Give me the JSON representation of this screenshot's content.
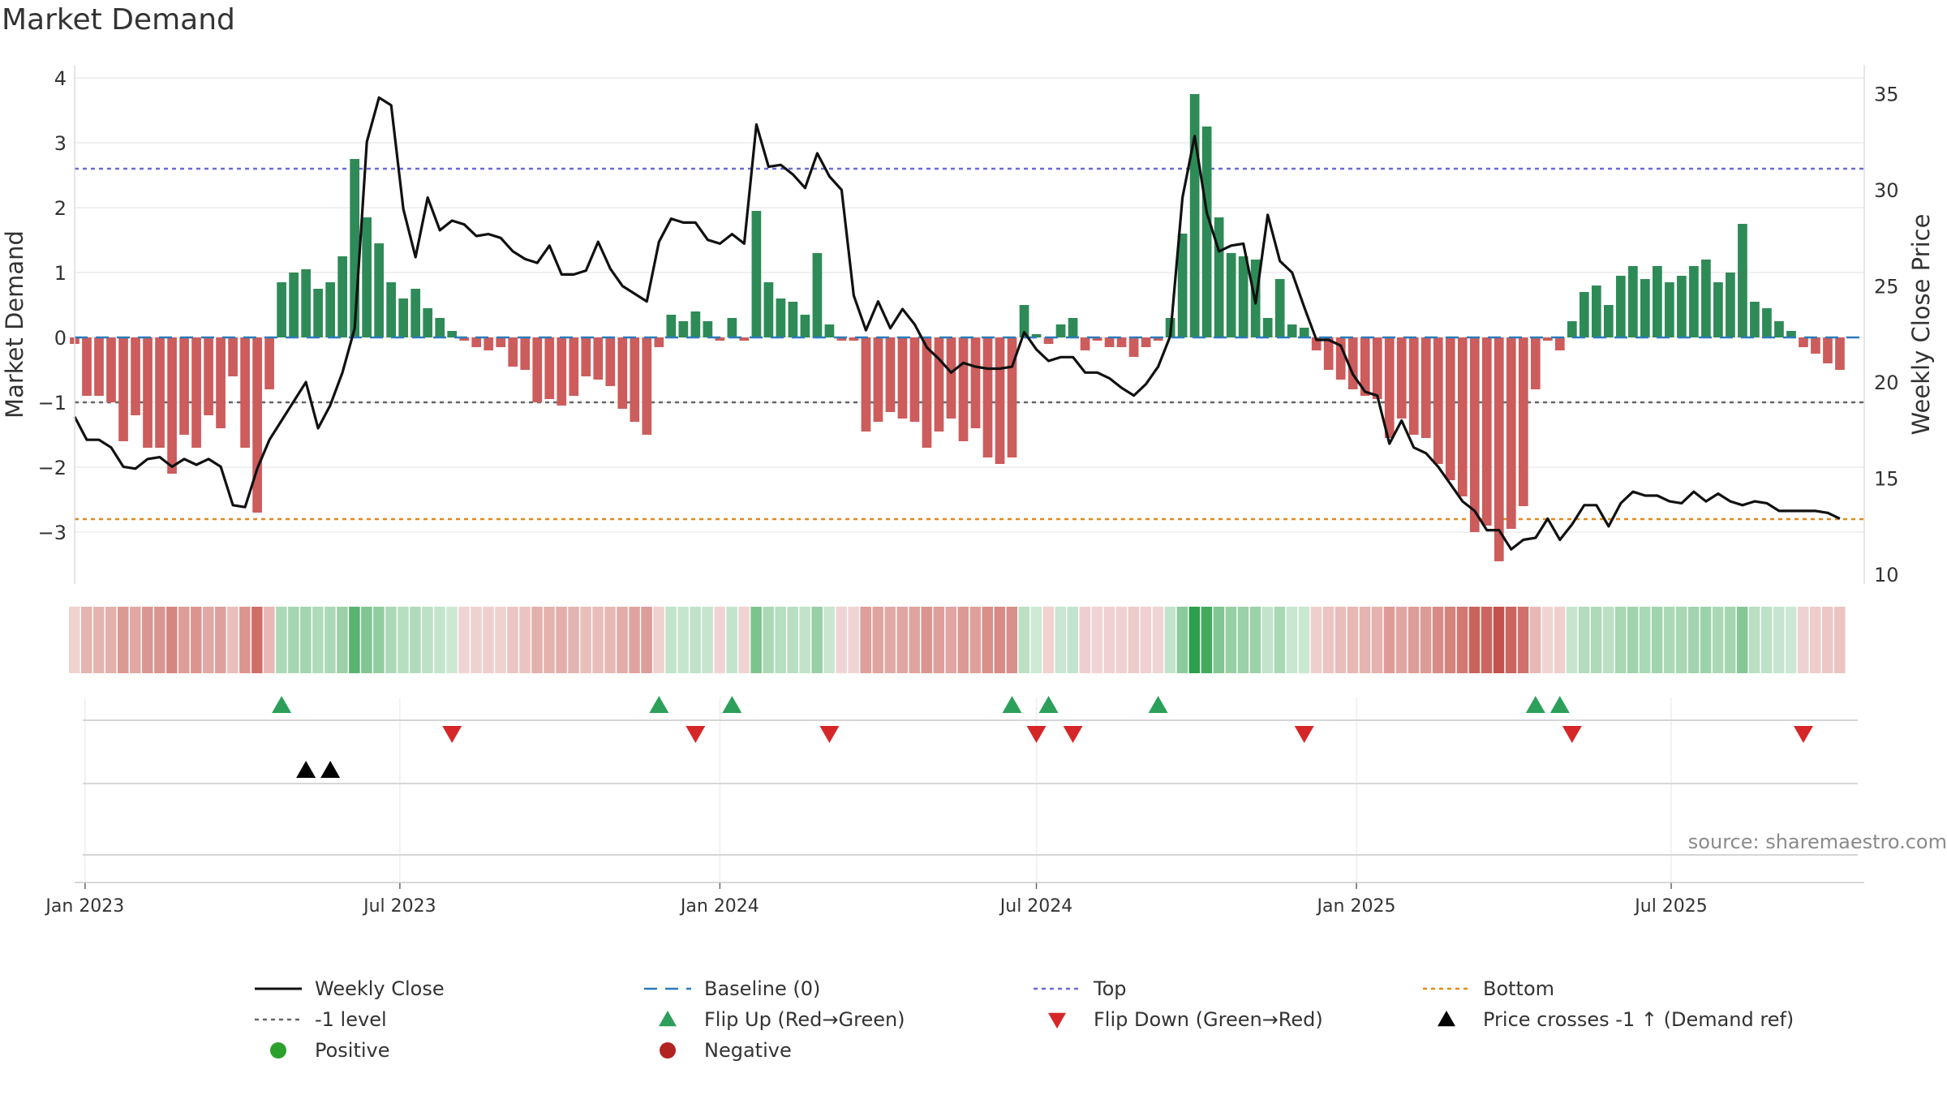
{
  "title": "Market Demand",
  "source": "source: sharemaestro.com",
  "colors": {
    "positive_bar": "#2e8b57",
    "negative_bar": "#cd5c5c",
    "close_line": "#111111",
    "baseline": "#2b7bb9",
    "top_line": "#6a6ad8",
    "minus1_line": "#666666",
    "bottom_line": "#e08a1e",
    "flip_up": "#2ca05a",
    "flip_down": "#d62728",
    "price_cross": "#000000",
    "positive_dot": "#2ca02c",
    "negative_dot": "#b22222"
  },
  "legend": [
    {
      "key": "close",
      "label": "Weekly Close"
    },
    {
      "key": "baseline",
      "label": "Baseline (0)"
    },
    {
      "key": "top",
      "label": "Top"
    },
    {
      "key": "bottom",
      "label": "Bottom"
    },
    {
      "key": "minus1",
      "label": "-1 level"
    },
    {
      "key": "flipup",
      "label": "Flip Up (Red→Green)"
    },
    {
      "key": "flipdown",
      "label": "Flip Down (Green→Red)"
    },
    {
      "key": "pricecross",
      "label": "Price crosses -1 ↑ (Demand ref)"
    },
    {
      "key": "positive",
      "label": "Positive"
    },
    {
      "key": "negative",
      "label": "Negative"
    }
  ],
  "chart_data": {
    "type": "bar",
    "title": "Market Demand",
    "ylabel": "Market Demand",
    "y2label": "Weekly Close Price",
    "xlim": [
      "2022-12-26",
      "2025-10-20"
    ],
    "ylim": [
      -3.8,
      4.2
    ],
    "y2lim": [
      9.5,
      36.5
    ],
    "yticks": [
      "−3",
      "−2",
      "−1",
      "0",
      "1",
      "2",
      "3",
      "4"
    ],
    "y2ticks": [
      "10",
      "15",
      "20",
      "25",
      "30",
      "35"
    ],
    "xticks": [
      {
        "date": "2023-01-01",
        "label": "Jan 2023"
      },
      {
        "date": "2023-07-01",
        "label": "Jul 2023"
      },
      {
        "date": "2024-01-01",
        "label": "Jan 2024"
      },
      {
        "date": "2024-07-01",
        "label": "Jul 2024"
      },
      {
        "date": "2025-01-01",
        "label": "Jan 2025"
      },
      {
        "date": "2025-07-01",
        "label": "Jul 2025"
      }
    ],
    "reference_lines": {
      "baseline": 0,
      "top": 2.6,
      "minus1": -1,
      "bottom": -2.8
    },
    "start_date": "2022-12-26",
    "week_step_days": 7,
    "demand": [
      -0.1,
      -0.9,
      -0.9,
      -1.0,
      -1.6,
      -1.2,
      -1.7,
      -1.7,
      -2.1,
      -1.5,
      -1.7,
      -1.2,
      -1.4,
      -0.6,
      -1.7,
      -2.7,
      -0.8,
      0.85,
      1.0,
      1.05,
      0.75,
      0.85,
      1.25,
      2.75,
      1.85,
      1.45,
      0.85,
      0.6,
      0.75,
      0.45,
      0.3,
      0.1,
      -0.05,
      -0.15,
      -0.2,
      -0.15,
      -0.45,
      -0.5,
      -1.0,
      -0.95,
      -1.05,
      -0.9,
      -0.6,
      -0.65,
      -0.75,
      -1.1,
      -1.3,
      -1.5,
      -0.15,
      0.35,
      0.25,
      0.4,
      0.25,
      -0.05,
      0.3,
      -0.05,
      1.95,
      0.85,
      0.6,
      0.55,
      0.35,
      1.3,
      0.2,
      -0.05,
      -0.05,
      -1.45,
      -1.3,
      -1.15,
      -1.25,
      -1.3,
      -1.7,
      -1.45,
      -1.25,
      -1.6,
      -1.4,
      -1.85,
      -1.95,
      -1.85,
      0.5,
      0.05,
      -0.1,
      0.2,
      0.3,
      -0.2,
      -0.05,
      -0.15,
      -0.15,
      -0.3,
      -0.15,
      -0.05,
      0.3,
      1.6,
      3.75,
      3.25,
      1.85,
      1.3,
      1.25,
      1.2,
      0.3,
      0.9,
      0.2,
      0.15,
      -0.2,
      -0.5,
      -0.65,
      -0.8,
      -0.9,
      -0.95,
      -1.55,
      -1.25,
      -1.5,
      -1.55,
      -1.95,
      -2.2,
      -2.45,
      -3.0,
      -2.9,
      -3.45,
      -2.95,
      -2.6,
      -0.8,
      -0.05,
      -0.2,
      0.25,
      0.7,
      0.8,
      0.5,
      0.95,
      1.1,
      0.9,
      1.1,
      0.85,
      0.95,
      1.1,
      1.2,
      0.85,
      1.0,
      1.75,
      0.55,
      0.45,
      0.25,
      0.1,
      -0.15,
      -0.25,
      -0.4,
      -0.5
    ],
    "close": [
      18.2,
      17.0,
      17.0,
      16.6,
      15.6,
      15.5,
      16.0,
      16.1,
      15.6,
      16.0,
      15.7,
      16.0,
      15.6,
      13.6,
      13.5,
      15.5,
      17.0,
      18.0,
      19.0,
      20.0,
      17.6,
      18.8,
      20.5,
      22.8,
      32.5,
      34.8,
      34.4,
      29.0,
      26.5,
      29.6,
      27.9,
      28.4,
      28.2,
      27.6,
      27.7,
      27.5,
      26.8,
      26.4,
      26.2,
      27.1,
      25.6,
      25.6,
      25.8,
      27.3,
      25.9,
      25.0,
      24.6,
      24.2,
      27.3,
      28.5,
      28.3,
      28.3,
      27.4,
      27.2,
      27.7,
      27.2,
      33.4,
      31.2,
      31.3,
      30.8,
      30.1,
      31.9,
      30.7,
      30.0,
      24.5,
      22.7,
      24.2,
      22.8,
      23.8,
      23.0,
      21.8,
      21.2,
      20.5,
      21.0,
      20.8,
      20.7,
      20.7,
      20.8,
      22.6,
      21.7,
      21.1,
      21.3,
      21.3,
      20.5,
      20.5,
      20.2,
      19.7,
      19.3,
      19.9,
      20.8,
      22.4,
      29.6,
      32.8,
      28.8,
      26.8,
      27.1,
      27.2,
      24.1,
      28.7,
      26.3,
      25.7,
      23.9,
      22.2,
      22.2,
      21.9,
      20.4,
      19.5,
      19.3,
      16.8,
      18.0,
      16.6,
      16.3,
      15.6,
      14.7,
      13.8,
      13.3,
      12.3,
      12.3,
      11.3,
      11.8,
      11.9,
      12.9,
      11.8,
      12.6,
      13.6,
      13.6,
      12.5,
      13.7,
      14.3,
      14.1,
      14.1,
      13.8,
      13.7,
      14.3,
      13.8,
      14.2,
      13.8,
      13.6,
      13.8,
      13.7,
      13.3,
      13.3,
      13.3,
      13.3,
      13.2,
      12.9
    ],
    "flip_up_weeks": [
      17,
      48,
      54,
      77,
      80,
      89,
      120,
      122
    ],
    "flip_down_weeks": [
      31,
      51,
      62,
      79,
      82,
      101,
      123,
      142
    ],
    "price_cross_weeks": [
      19,
      21
    ]
  }
}
